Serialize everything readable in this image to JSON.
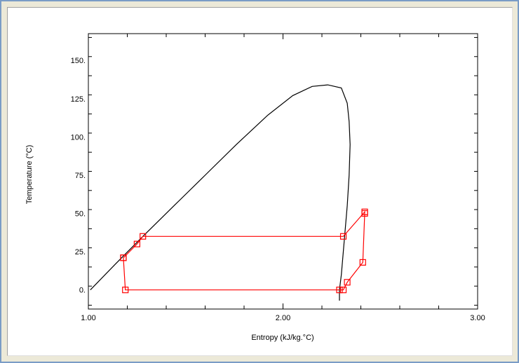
{
  "chart_data": {
    "type": "line",
    "xlabel": "Entropy (kJ/kg.°C)",
    "ylabel": "Temperature (°C)",
    "xlim": [
      1.0,
      3.0
    ],
    "ylim": [
      -12.5,
      167.5
    ],
    "x_ticks": [
      "1.00",
      "2.00",
      "3.00"
    ],
    "y_ticks": [
      "0.",
      "25.",
      "50.",
      "75.",
      "100.",
      "125.",
      "150."
    ],
    "x_tick_values": [
      1.0,
      2.0,
      3.0
    ],
    "y_tick_values": [
      0,
      25,
      50,
      75,
      100,
      125,
      150
    ],
    "grid": false,
    "series": [
      {
        "role": "saturation-dome",
        "color": "#000000",
        "x": [
          1.01,
          1.14,
          1.28,
          1.44,
          1.6,
          1.76,
          1.92,
          2.05,
          2.15,
          2.23,
          2.3,
          2.33,
          2.34,
          2.345,
          2.34,
          2.33,
          2.32,
          2.31,
          2.3,
          2.29,
          2.29
        ],
        "y": [
          0,
          17,
          35,
          55,
          75,
          95,
          114,
          127,
          133,
          134,
          132,
          122,
          110,
          95,
          75,
          55,
          40,
          25,
          10,
          0,
          -7
        ]
      },
      {
        "role": "refrigeration-cycle",
        "color": "#ff0000",
        "markers": true,
        "x": [
          1.18,
          1.19,
          2.29,
          2.31,
          2.33,
          2.41,
          2.42,
          2.42,
          2.31,
          1.28,
          1.25,
          1.18
        ],
        "y": [
          21,
          0,
          0,
          0,
          5,
          18,
          50,
          51,
          35,
          35,
          30,
          21
        ]
      }
    ]
  }
}
